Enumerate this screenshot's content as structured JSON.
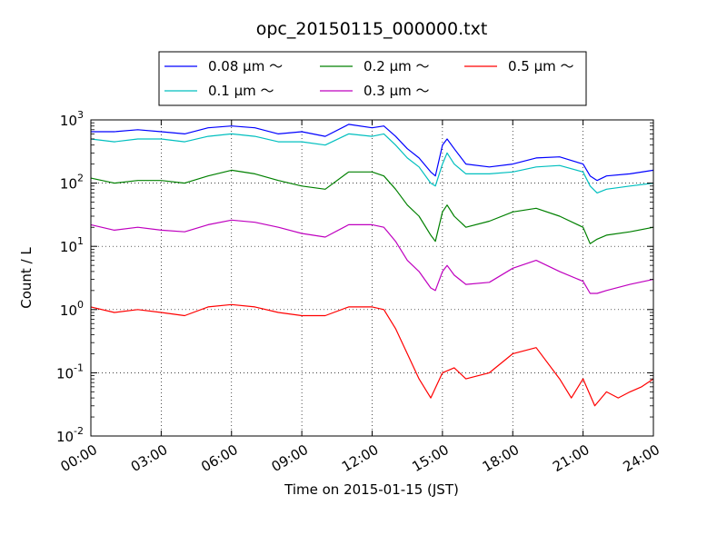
{
  "chart_data": {
    "type": "line",
    "title": "opc_20150115_000000.txt",
    "xlabel": "Time on 2015-01-15 (JST)",
    "ylabel": "Count / L",
    "x_ticks": [
      "00:00",
      "03:00",
      "06:00",
      "09:00",
      "12:00",
      "15:00",
      "18:00",
      "21:00",
      "24:00"
    ],
    "x_range_hours": [
      0,
      24
    ],
    "yscale": "log",
    "ylim": [
      0.01,
      1000
    ],
    "y_ticks": [
      {
        "value": 1000,
        "base": "10",
        "exp": "3"
      },
      {
        "value": 100,
        "base": "10",
        "exp": "2"
      },
      {
        "value": 10,
        "base": "10",
        "exp": "1"
      },
      {
        "value": 1,
        "base": "10",
        "exp": "0"
      },
      {
        "value": 0.1,
        "base": "10",
        "exp": "-1"
      },
      {
        "value": 0.01,
        "base": "10",
        "exp": "-2"
      }
    ],
    "grid": true,
    "legend_position": "top-center",
    "series": [
      {
        "name": "0.08 μm ～",
        "color": "#0000ff",
        "x": [
          0,
          1,
          2,
          3,
          4,
          5,
          6,
          7,
          8,
          9,
          10,
          11,
          12,
          12.5,
          13,
          13.5,
          14,
          14.5,
          14.7,
          15,
          15.2,
          15.5,
          16,
          17,
          18,
          19,
          20,
          21,
          21.3,
          21.6,
          22,
          23,
          24
        ],
        "y": [
          650,
          650,
          700,
          650,
          600,
          750,
          800,
          750,
          600,
          650,
          550,
          850,
          750,
          800,
          550,
          350,
          250,
          150,
          130,
          400,
          500,
          350,
          200,
          180,
          200,
          250,
          260,
          200,
          130,
          110,
          130,
          140,
          160
        ]
      },
      {
        "name": "0.1 μm ～",
        "color": "#00bfbf",
        "x": [
          0,
          1,
          2,
          3,
          4,
          5,
          6,
          7,
          8,
          9,
          10,
          11,
          12,
          12.5,
          13,
          13.5,
          14,
          14.5,
          14.7,
          15,
          15.2,
          15.5,
          16,
          17,
          18,
          19,
          20,
          21,
          21.3,
          21.6,
          22,
          23,
          24
        ],
        "y": [
          500,
          450,
          500,
          500,
          450,
          550,
          600,
          550,
          450,
          450,
          400,
          600,
          550,
          600,
          400,
          250,
          180,
          100,
          90,
          200,
          300,
          200,
          140,
          140,
          150,
          180,
          190,
          150,
          90,
          70,
          80,
          90,
          100
        ]
      },
      {
        "name": "0.2 μm ～",
        "color": "#008000",
        "x": [
          0,
          1,
          2,
          3,
          4,
          5,
          6,
          7,
          8,
          9,
          10,
          11,
          12,
          12.5,
          13,
          13.5,
          14,
          14.5,
          14.7,
          15,
          15.2,
          15.5,
          16,
          17,
          18,
          19,
          20,
          21,
          21.3,
          21.6,
          22,
          23,
          24
        ],
        "y": [
          120,
          100,
          110,
          110,
          100,
          130,
          160,
          140,
          110,
          90,
          80,
          150,
          150,
          130,
          80,
          45,
          30,
          15,
          12,
          35,
          45,
          30,
          20,
          25,
          35,
          40,
          30,
          20,
          11,
          13,
          15,
          17,
          20
        ]
      },
      {
        "name": "0.3 μm ～",
        "color": "#bf00bf",
        "x": [
          0,
          1,
          2,
          3,
          4,
          5,
          6,
          7,
          8,
          9,
          10,
          11,
          12,
          12.5,
          13,
          13.5,
          14,
          14.5,
          14.7,
          15,
          15.2,
          15.5,
          16,
          17,
          18,
          19,
          20,
          21,
          21.3,
          21.6,
          22,
          23,
          24
        ],
        "y": [
          22,
          18,
          20,
          18,
          17,
          22,
          26,
          24,
          20,
          16,
          14,
          22,
          22,
          20,
          12,
          6,
          4,
          2.2,
          2,
          4,
          5,
          3.5,
          2.5,
          2.7,
          4.5,
          6,
          4,
          2.8,
          1.8,
          1.8,
          2,
          2.5,
          3
        ]
      },
      {
        "name": "0.5 μm ～",
        "color": "#ff0000",
        "x": [
          0,
          1,
          2,
          3,
          4,
          5,
          6,
          7,
          8,
          9,
          10,
          11,
          12,
          12.5,
          13,
          13.5,
          14,
          14.5,
          15,
          15.5,
          16,
          17,
          18,
          19,
          20,
          20.5,
          21,
          21.5,
          22,
          22.5,
          23,
          23.5,
          24
        ],
        "y": [
          1.1,
          0.9,
          1.0,
          0.9,
          0.8,
          1.1,
          1.2,
          1.1,
          0.9,
          0.8,
          0.8,
          1.1,
          1.1,
          1.0,
          0.5,
          0.2,
          0.08,
          0.04,
          0.1,
          0.12,
          0.08,
          0.1,
          0.2,
          0.25,
          0.08,
          0.04,
          0.08,
          0.03,
          0.05,
          0.04,
          0.05,
          0.06,
          0.08
        ]
      }
    ]
  }
}
